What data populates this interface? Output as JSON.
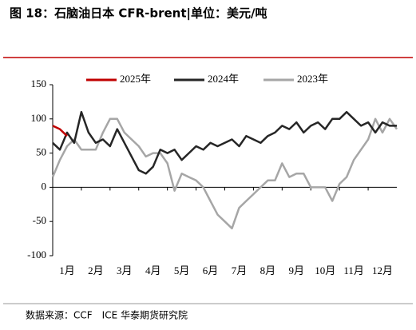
{
  "chart_data": {
    "type": "line",
    "title": "图 18：石脑油日本 CFR-brent|单位：美元/吨",
    "note": "数据来源：CCF　ICE 华泰期货研究院",
    "x": [
      0,
      0.25,
      0.5,
      0.75,
      1,
      1.25,
      1.5,
      1.75,
      2,
      2.25,
      2.5,
      2.75,
      3,
      3.25,
      3.5,
      3.75,
      4,
      4.25,
      4.5,
      4.75,
      5,
      5.25,
      5.5,
      5.75,
      6,
      6.25,
      6.5,
      6.75,
      7,
      7.25,
      7.5,
      7.75,
      8,
      8.25,
      8.5,
      8.75,
      9,
      9.25,
      9.5,
      9.75,
      10,
      10.25,
      10.5,
      10.75,
      11,
      11.25,
      11.5,
      11.75,
      12
    ],
    "xlim": [
      0,
      12
    ],
    "xticks": [
      {
        "value": 0,
        "label": "1月"
      },
      {
        "value": 1,
        "label": "2月"
      },
      {
        "value": 2,
        "label": "3月"
      },
      {
        "value": 3,
        "label": "4月"
      },
      {
        "value": 4,
        "label": "5月"
      },
      {
        "value": 5,
        "label": "6月"
      },
      {
        "value": 6,
        "label": "7月"
      },
      {
        "value": 7,
        "label": "8月"
      },
      {
        "value": 8,
        "label": "9月"
      },
      {
        "value": 9,
        "label": "10月"
      },
      {
        "value": 10,
        "label": "11月"
      },
      {
        "value": 11,
        "label": "12月"
      }
    ],
    "ylim": [
      -100,
      150
    ],
    "yticks": [
      -100,
      -50,
      0,
      50,
      100,
      150
    ],
    "series": [
      {
        "name": "2025年",
        "color": "#c00000",
        "values": [
          90,
          85,
          75,
          null,
          null,
          null,
          null,
          null,
          null,
          null,
          null,
          null,
          null,
          null,
          null,
          null,
          null,
          null,
          null,
          null,
          null,
          null,
          null,
          null,
          null,
          null,
          null,
          null,
          null,
          null,
          null,
          null,
          null,
          null,
          null,
          null,
          null,
          null,
          null,
          null,
          null,
          null,
          null,
          null,
          null,
          null,
          null,
          null,
          null
        ]
      },
      {
        "name": "2024年",
        "color": "#262626",
        "values": [
          65,
          55,
          80,
          65,
          110,
          80,
          65,
          70,
          60,
          85,
          65,
          45,
          25,
          20,
          30,
          55,
          50,
          55,
          40,
          50,
          60,
          55,
          65,
          60,
          65,
          70,
          60,
          75,
          70,
          65,
          75,
          80,
          90,
          85,
          95,
          80,
          90,
          95,
          85,
          100,
          100,
          110,
          100,
          90,
          95,
          80,
          95,
          90,
          90
        ]
      },
      {
        "name": "2023年",
        "color": "#a6a6a6",
        "values": [
          15,
          40,
          60,
          70,
          55,
          55,
          55,
          80,
          100,
          100,
          80,
          70,
          60,
          45,
          50,
          50,
          35,
          -5,
          20,
          15,
          10,
          0,
          -20,
          -40,
          -50,
          -60,
          -30,
          -20,
          -10,
          0,
          10,
          10,
          35,
          15,
          20,
          20,
          0,
          0,
          0,
          -20,
          5,
          15,
          40,
          55,
          70,
          100,
          80,
          100,
          85
        ]
      }
    ]
  }
}
